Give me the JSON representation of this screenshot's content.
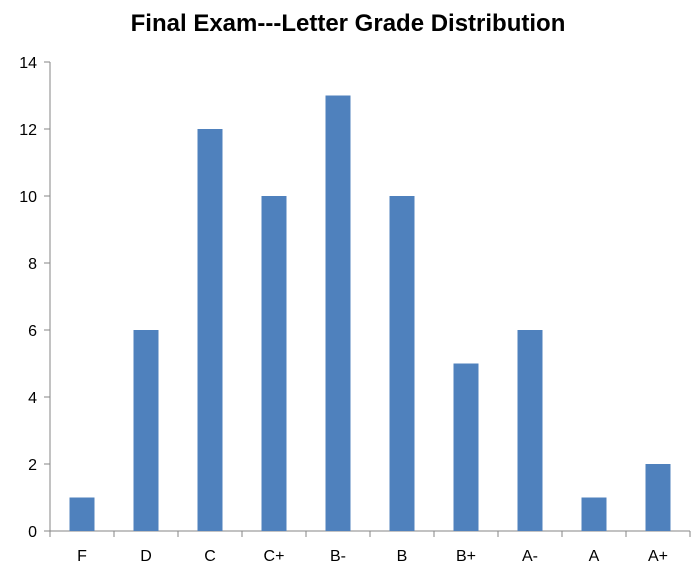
{
  "chart_data": {
    "type": "bar",
    "title": "Final Exam---Letter Grade Distribution",
    "xlabel": "",
    "ylabel": "",
    "categories": [
      "F",
      "D",
      "C",
      "C+",
      "B-",
      "B",
      "B+",
      "A-",
      "A",
      "A+"
    ],
    "series": [
      {
        "values": [
          1,
          6,
          12,
          10,
          13,
          10,
          5,
          6,
          1,
          2
        ],
        "color": "#4F81BD"
      }
    ],
    "ylim": [
      0,
      14
    ],
    "yticks": [
      0,
      2,
      4,
      6,
      8,
      10,
      12,
      14
    ],
    "grid": false,
    "legend": "none"
  }
}
